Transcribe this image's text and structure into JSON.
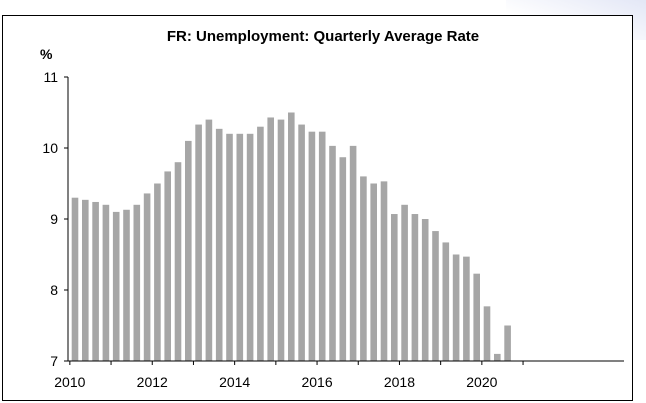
{
  "colors": {
    "bar": "#a6a6a6",
    "axis": "#000000"
  },
  "chart_data": {
    "type": "bar",
    "title": "FR: Unemployment: Quarterly Average Rate",
    "ylabel": "%",
    "xlabel": "",
    "ylim": [
      7,
      11
    ],
    "yticks": [
      "7",
      "8",
      "9",
      "10",
      "11"
    ],
    "xtick_labels": [
      "2010",
      "2012",
      "2014",
      "2016",
      "2018",
      "2020"
    ],
    "categories": [
      "2010 Q1",
      "2010 Q2",
      "2010 Q3",
      "2010 Q4",
      "2011 Q1",
      "2011 Q2",
      "2011 Q3",
      "2011 Q4",
      "2012 Q1",
      "2012 Q2",
      "2012 Q3",
      "2012 Q4",
      "2013 Q1",
      "2013 Q2",
      "2013 Q3",
      "2013 Q4",
      "2014 Q1",
      "2014 Q2",
      "2014 Q3",
      "2014 Q4",
      "2015 Q1",
      "2015 Q2",
      "2015 Q3",
      "2015 Q4",
      "2016 Q1",
      "2016 Q2",
      "2016 Q3",
      "2016 Q4",
      "2017 Q1",
      "2017 Q2",
      "2017 Q3",
      "2017 Q4",
      "2018 Q1",
      "2018 Q2",
      "2018 Q3",
      "2018 Q4",
      "2019 Q1",
      "2019 Q2",
      "2019 Q3",
      "2019 Q4",
      "2020 Q1",
      "2020 Q2",
      "2020 Q3"
    ],
    "values": [
      9.3,
      9.27,
      9.24,
      9.2,
      9.1,
      9.13,
      9.2,
      9.36,
      9.5,
      9.67,
      9.8,
      10.1,
      10.33,
      10.4,
      10.27,
      10.2,
      10.2,
      10.2,
      10.3,
      10.43,
      10.4,
      10.5,
      10.33,
      10.23,
      10.23,
      10.03,
      9.87,
      10.03,
      9.6,
      9.5,
      9.53,
      9.07,
      9.2,
      9.07,
      9.0,
      8.83,
      8.67,
      8.5,
      8.47,
      8.23,
      7.77,
      7.1,
      7.5
    ],
    "grid": false,
    "legend": "none"
  }
}
